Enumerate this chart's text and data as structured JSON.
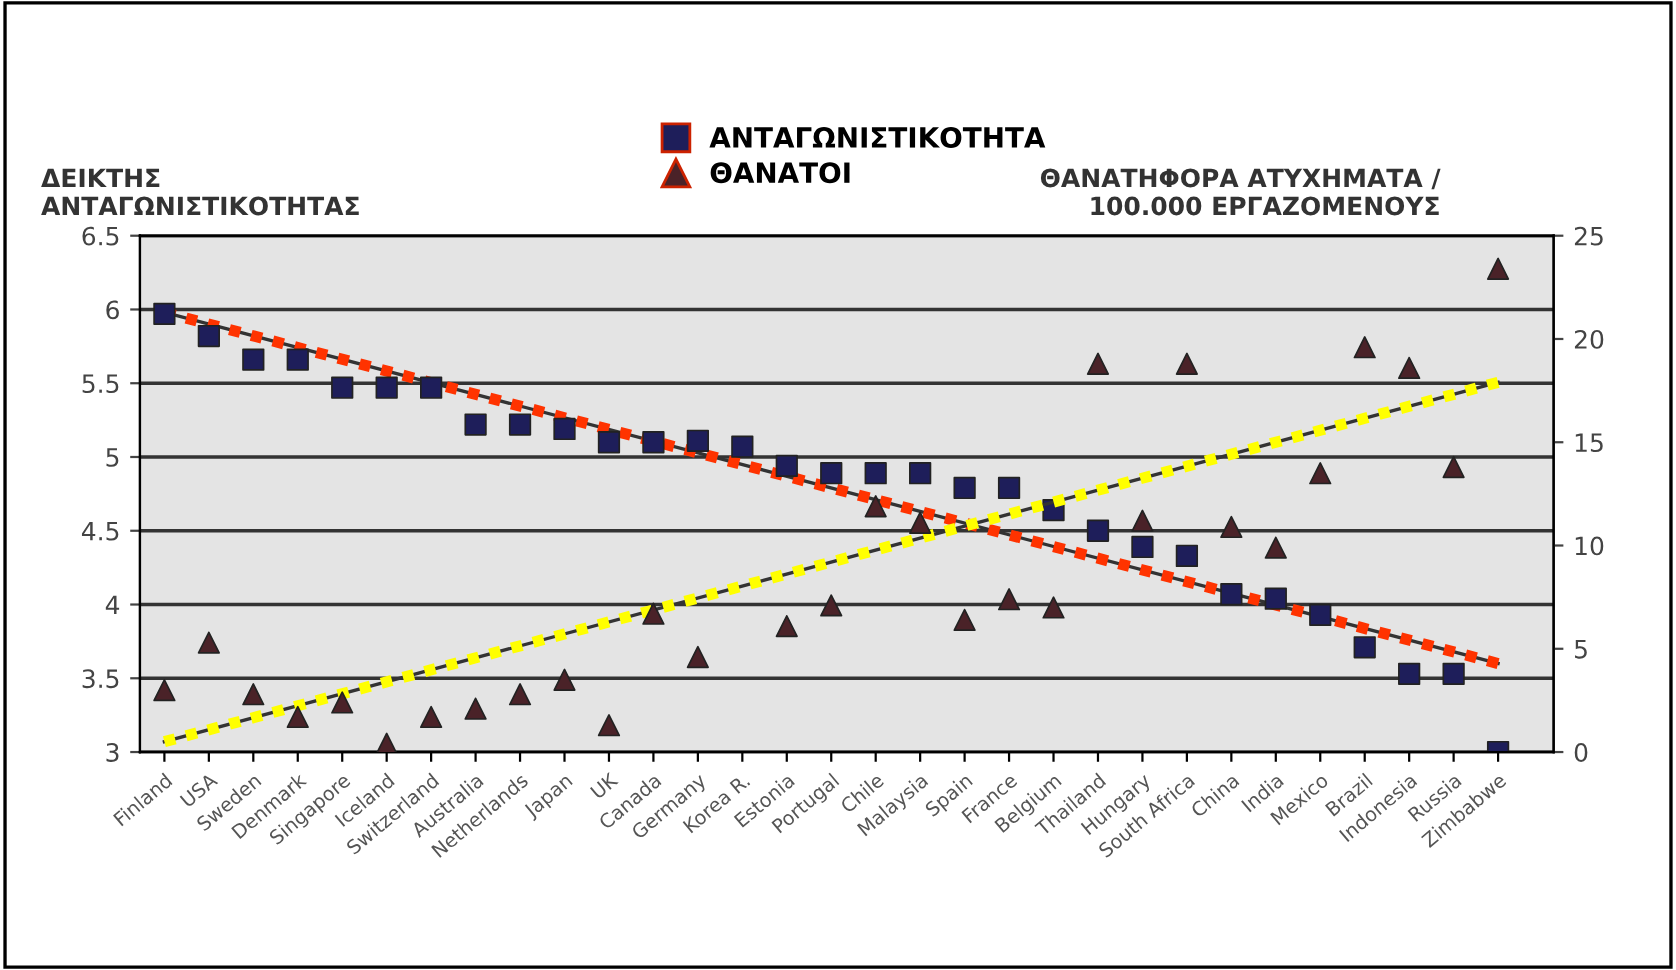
{
  "chart_data": {
    "type": "scatter",
    "ylabel": "ΔΕΙΚΤΗΣ\nΑΝΤΑΓΩΝΙΣΤΙΚΟΤΗΤΑΣ",
    "y2label": "ΘΑΝΑΤΗΦΟΡΑ ΑΤΥΧΗΜΑΤΑ /\n100.000 ΕΡΓΑΖΟΜΕΝΟΥΣ",
    "categories": [
      "Finland",
      "USA",
      "Sweden",
      "Denmark",
      "Singapore",
      "Iceland",
      "Switzerland",
      "Australia",
      "Netherlands",
      "Japan",
      "UK",
      "Canada",
      "Germany",
      "Korea R.",
      "Estonia",
      "Portugal",
      "Chile",
      "Malaysia",
      "Spain",
      "France",
      "Belgium",
      "Thailand",
      "Hungary",
      "South Africa",
      "China",
      "India",
      "Mexico",
      "Brazil",
      "Indonesia",
      "Russia",
      "Zimbabwe"
    ],
    "series": [
      {
        "name": "ΑΝΤΑΓΩΝΙΣΤΙΚΟΤΗΤΑ",
        "color": "#1e1e5a",
        "marker": "square",
        "values": [
          5.97,
          5.82,
          5.66,
          5.66,
          5.47,
          5.47,
          5.47,
          5.22,
          5.22,
          5.19,
          5.1,
          5.1,
          5.11,
          5.07,
          4.94,
          4.89,
          4.89,
          4.89,
          4.79,
          4.79,
          4.64,
          4.5,
          4.39,
          4.33,
          4.07,
          4.04,
          3.93,
          3.71,
          3.53,
          3.53,
          3.0
        ]
      },
      {
        "name": "ΘΑΝΑΤΟΙ",
        "color": "#4a2228",
        "marker": "triangle",
        "axis": "y2",
        "values": [
          3.0,
          5.3,
          2.8,
          1.7,
          2.4,
          0.4,
          1.7,
          2.1,
          2.8,
          3.5,
          1.3,
          6.7,
          4.6,
          null,
          6.1,
          7.1,
          11.9,
          11.1,
          6.4,
          7.4,
          7.0,
          18.8,
          11.2,
          18.8,
          10.9,
          9.9,
          13.5,
          19.6,
          18.6,
          13.8,
          23.4
        ]
      },
      {
        "type": "line",
        "color": "#ff3300",
        "line_style": "dotted",
        "x": [
          "Finland",
          "Zimbabwe"
        ],
        "values": [
          5.98,
          3.6
        ]
      },
      {
        "type": "line",
        "color": "#ffff00",
        "line_style": "dotted",
        "axis": "y2",
        "x": [
          "Finland",
          "Zimbabwe"
        ],
        "values": [
          0.5,
          17.9
        ]
      }
    ],
    "ylim": [
      3,
      6.5
    ],
    "yticks": [
      3,
      3.5,
      4,
      4.5,
      5,
      5.5,
      6,
      6.5
    ],
    "y2lim": [
      0,
      25
    ],
    "y2ticks": [
      0,
      5,
      10,
      15,
      20,
      25
    ],
    "grid": "y",
    "legend": "top"
  }
}
